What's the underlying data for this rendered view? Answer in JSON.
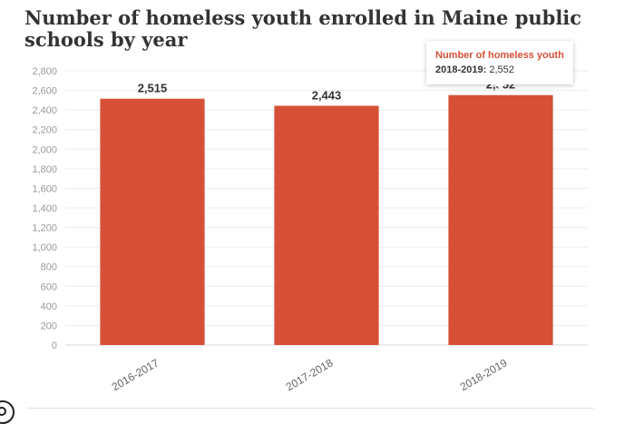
{
  "chart_data": {
    "type": "bar",
    "title": "Number of homeless youth enrolled in Maine public schools by year",
    "categories": [
      "2016-2017",
      "2017-2018",
      "2018-2019"
    ],
    "series": [
      {
        "name": "Number of homeless youth",
        "values": [
          2515,
          2443,
          2552
        ]
      }
    ],
    "data_labels": [
      "2,515",
      "2,443",
      "2,552"
    ],
    "ylim": [
      0,
      2800
    ],
    "yticks": [
      0,
      200,
      400,
      600,
      800,
      1000,
      1200,
      1400,
      1600,
      1800,
      2000,
      2200,
      2400,
      2600,
      2800
    ],
    "ytick_labels": [
      "0",
      "200",
      "400",
      "600",
      "800",
      "1,000",
      "1,200",
      "1,400",
      "1,600",
      "1,800",
      "2,000",
      "2,200",
      "2,400",
      "2,600",
      "2,800"
    ],
    "grid": true,
    "bar_color": "#d65037"
  },
  "tooltip": {
    "heading": "Number of homeless youth",
    "category": "2018-2019:",
    "value": "2,552"
  }
}
